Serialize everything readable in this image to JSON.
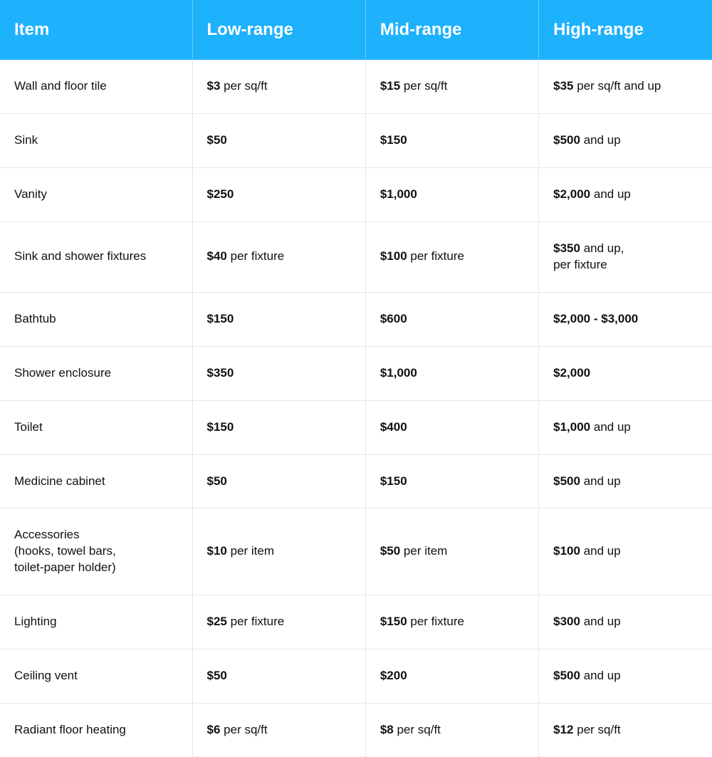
{
  "table": {
    "type": "table",
    "header_bg": "#1eb1fc",
    "header_text_color": "#ffffff",
    "border_color": "#e6e6e6",
    "text_color": "#111111",
    "header_fontsize": 24,
    "cell_fontsize": 17,
    "columns": [
      "Item",
      "Low-range",
      "Mid-range",
      "High-range"
    ],
    "rows": [
      {
        "item": "Wall and floor tile",
        "low": {
          "bold": "$3",
          "suffix": " per sq/ft"
        },
        "mid": {
          "bold": "$15",
          "suffix": " per sq/ft"
        },
        "high": {
          "bold": "$35",
          "suffix": " per sq/ft and up"
        }
      },
      {
        "item": "Sink",
        "low": {
          "bold": "$50",
          "suffix": ""
        },
        "mid": {
          "bold": "$150",
          "suffix": ""
        },
        "high": {
          "bold": "$500",
          "suffix": " and up"
        }
      },
      {
        "item": "Vanity",
        "low": {
          "bold": "$250",
          "suffix": ""
        },
        "mid": {
          "bold": "$1,000",
          "suffix": ""
        },
        "high": {
          "bold": "$2,000",
          "suffix": " and up"
        }
      },
      {
        "item": "Sink and shower fixtures",
        "low": {
          "bold": "$40",
          "suffix": " per fixture"
        },
        "mid": {
          "bold": "$100",
          "suffix": " per fixture"
        },
        "high": {
          "bold": "$350",
          "suffix": " and up,\nper fixture"
        }
      },
      {
        "item": "Bathtub",
        "low": {
          "bold": "$150",
          "suffix": ""
        },
        "mid": {
          "bold": "$600",
          "suffix": ""
        },
        "high": {
          "bold": "$2,000 - $3,000",
          "suffix": ""
        }
      },
      {
        "item": "Shower enclosure",
        "low": {
          "bold": "$350",
          "suffix": ""
        },
        "mid": {
          "bold": "$1,000",
          "suffix": ""
        },
        "high": {
          "bold": "$2,000",
          "suffix": ""
        }
      },
      {
        "item": "Toilet",
        "low": {
          "bold": "$150",
          "suffix": ""
        },
        "mid": {
          "bold": "$400",
          "suffix": ""
        },
        "high": {
          "bold": "$1,000",
          "suffix": " and up"
        }
      },
      {
        "item": "Medicine cabinet",
        "low": {
          "bold": "$50",
          "suffix": ""
        },
        "mid": {
          "bold": "$150",
          "suffix": ""
        },
        "high": {
          "bold": "$500",
          "suffix": " and up"
        }
      },
      {
        "item": "Accessories\n(hooks, towel bars,\ntoilet-paper holder)",
        "low": {
          "bold": "$10",
          "suffix": " per item"
        },
        "mid": {
          "bold": "$50",
          "suffix": " per item"
        },
        "high": {
          "bold": "$100",
          "suffix": " and up"
        }
      },
      {
        "item": "Lighting",
        "low": {
          "bold": "$25",
          "suffix": " per fixture"
        },
        "mid": {
          "bold": "$150",
          "suffix": " per fixture"
        },
        "high": {
          "bold": "$300",
          "suffix": " and up"
        }
      },
      {
        "item": "Ceiling vent",
        "low": {
          "bold": "$50",
          "suffix": ""
        },
        "mid": {
          "bold": "$200",
          "suffix": ""
        },
        "high": {
          "bold": "$500",
          "suffix": " and up"
        }
      },
      {
        "item": "Radiant floor heating",
        "low": {
          "bold": "$6",
          "suffix": " per sq/ft"
        },
        "mid": {
          "bold": "$8",
          "suffix": " per sq/ft"
        },
        "high": {
          "bold": "$12",
          "suffix": " per sq/ft"
        }
      }
    ]
  }
}
